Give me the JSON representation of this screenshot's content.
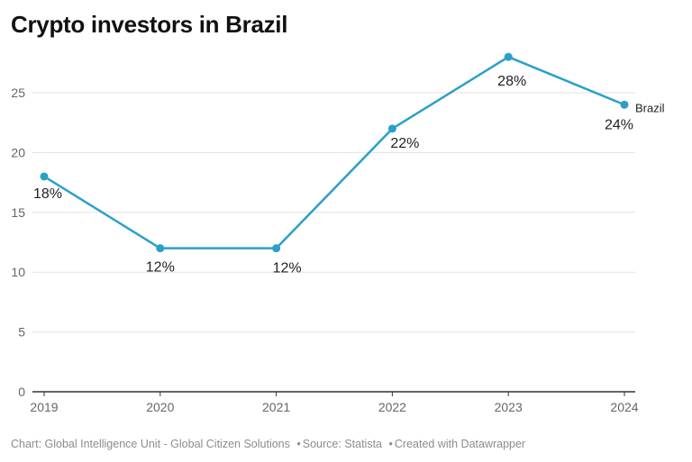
{
  "chart_data": {
    "type": "line",
    "title": "Crypto investors in Brazil",
    "categories": [
      "2019",
      "2020",
      "2021",
      "2022",
      "2023",
      "2024"
    ],
    "series": [
      {
        "name": "Brazil",
        "values": [
          18,
          12,
          12,
          22,
          28,
          24
        ],
        "labels": [
          "18%",
          "12%",
          "12%",
          "22%",
          "28%",
          "24%"
        ],
        "color": "#2aa0c9"
      }
    ],
    "yticks": [
      0,
      5,
      10,
      15,
      20,
      25
    ],
    "ylim": [
      0,
      28
    ],
    "xlabel": "",
    "ylabel": "",
    "grid": true,
    "legend": "end-of-line label"
  },
  "footer": {
    "chart_credit": "Chart: Global Intelligence Unit - Global Citizen Solutions",
    "source": "Source: Statista",
    "tool": "Created with Datawrapper"
  },
  "colors": {
    "line": "#2aa0c9",
    "grid": "#e2e2e2",
    "axis": "#333333",
    "tick_text": "#666666",
    "label_text": "#222222"
  }
}
